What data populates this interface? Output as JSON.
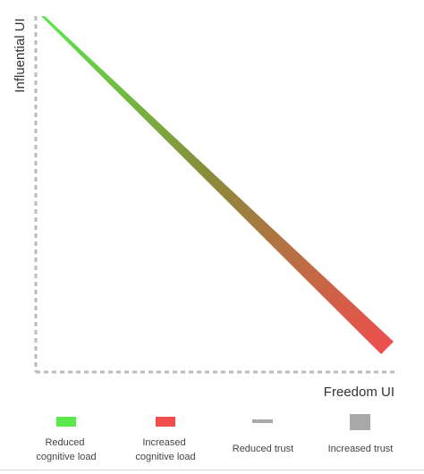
{
  "axes": {
    "y_label": "Influential UI",
    "x_label": "Freedom UI",
    "axis_color": "#bbbbbb"
  },
  "trend": {
    "start_color": "#5ae84a",
    "mid_color": "#8a8a3a",
    "end_color": "#f04e4e"
  },
  "legend": {
    "items": [
      {
        "key": "reduced-cognitive-load",
        "lines": [
          "Reduced",
          "cognitive load"
        ],
        "color": "#5ae84a"
      },
      {
        "key": "increased-cognitive-load",
        "lines": [
          "Increased",
          "cognitive load"
        ],
        "color": "#f04e4e"
      },
      {
        "key": "reduced-trust",
        "lines": [
          "Reduced trust"
        ],
        "color": "#a8a8a8"
      },
      {
        "key": "increased-trust",
        "lines": [
          "Increased trust"
        ],
        "color": "#a8a8a8"
      }
    ]
  }
}
